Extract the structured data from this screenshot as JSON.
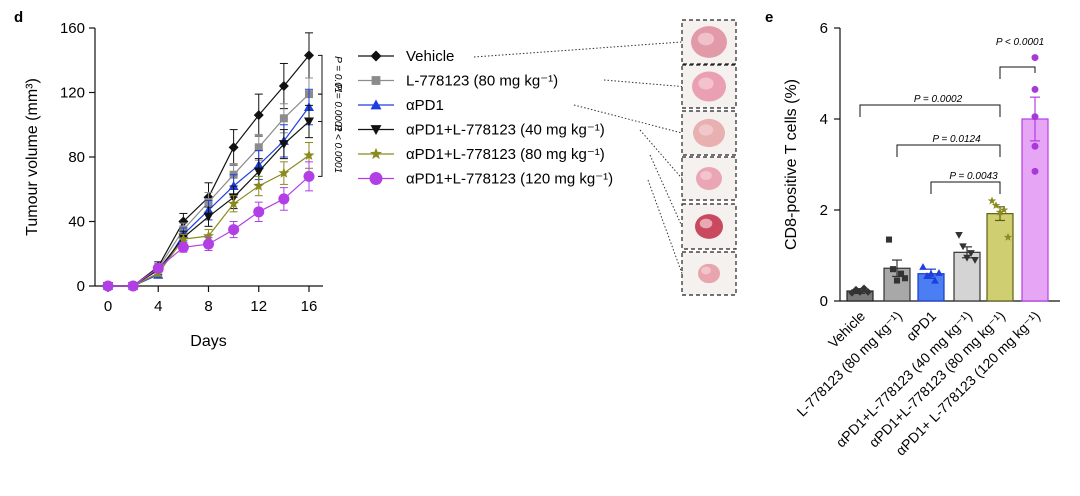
{
  "chart_data": [
    {
      "panel": "d",
      "type": "line",
      "xlabel": "Days",
      "ylabel": "Tumour volume (mm³)",
      "xlim": [
        0,
        17
      ],
      "ylim": [
        0,
        160
      ],
      "xticks": [
        "0",
        "4",
        "8",
        "12",
        "16"
      ],
      "yticks": [
        "0",
        "40",
        "80",
        "120",
        "160"
      ],
      "x": [
        0,
        2,
        4,
        6,
        8,
        10,
        12,
        14,
        16
      ],
      "series": [
        {
          "name": "Vehicle",
          "color": "#111111",
          "marker": "diamond",
          "values": [
            0,
            0,
            12,
            40,
            55,
            86,
            106,
            124,
            143
          ],
          "errors": [
            0,
            0,
            3,
            5,
            9,
            11,
            13,
            14,
            14
          ]
        },
        {
          "name": "L-778123 (80 mg kg⁻¹)",
          "color": "#8c8c8c",
          "marker": "square",
          "values": [
            0,
            0,
            11,
            35,
            52,
            69,
            86,
            104,
            119
          ],
          "errors": [
            0,
            0,
            3,
            4,
            6,
            7,
            8,
            9,
            10
          ]
        },
        {
          "name": "αPD1",
          "color": "#1e3fe0",
          "marker": "triangle-up",
          "values": [
            0,
            0,
            7,
            32,
            47,
            62,
            75,
            90,
            111
          ],
          "errors": [
            0,
            0,
            2,
            4,
            6,
            7,
            9,
            10,
            11
          ]
        },
        {
          "name": "αPD1+L-778123 (40 mg kg⁻¹)",
          "color": "#111111",
          "marker": "triangle-down",
          "values": [
            0,
            0,
            10,
            30,
            43,
            55,
            71,
            88,
            102
          ],
          "errors": [
            0,
            0,
            3,
            4,
            6,
            7,
            8,
            9,
            10
          ]
        },
        {
          "name": "αPD1+L-778123 (80 mg kg⁻¹)",
          "color": "#8a8a1e",
          "marker": "star",
          "values": [
            0,
            0,
            8,
            29,
            31,
            51,
            62,
            70,
            81
          ],
          "errors": [
            0,
            0,
            2,
            3,
            4,
            5,
            6,
            7,
            8
          ]
        },
        {
          "name": "αPD1+L-778123 (120 mg kg⁻¹)",
          "color": "#b23ee6",
          "marker": "circle",
          "values": [
            0,
            0,
            11,
            24,
            26,
            35,
            46,
            54,
            68
          ],
          "errors": [
            0,
            0,
            2,
            3,
            4,
            5,
            6,
            7,
            9
          ]
        }
      ],
      "significance": [
        {
          "label": "P = 0.01"
        },
        {
          "label": "P = 0.0001"
        },
        {
          "label": "P < 0.0001"
        }
      ]
    },
    {
      "panel": "e",
      "type": "bar",
      "ylabel": "CD8-positive T cells (%)",
      "ylim": [
        0,
        6
      ],
      "yticks": [
        "0",
        "2",
        "4",
        "6"
      ],
      "categories": [
        "Vehicle",
        "L-778123 (80 mg kg⁻¹)",
        "αPD1",
        "αPD1+L-778123 (40 mg kg⁻¹)",
        "αPD1+L-778123 (80 mg kg⁻¹)",
        "αPD1+ L-778123 (120 mg kg⁻¹)"
      ],
      "values": [
        0.22,
        0.72,
        0.6,
        1.07,
        1.92,
        4.0
      ],
      "errors": [
        0.05,
        0.18,
        0.1,
        0.12,
        0.15,
        0.48
      ],
      "colors": [
        "#7a7a7a",
        "#a8a8a8",
        "#4a7ef2",
        "#d4d4d4",
        "#cfcf72",
        "#e6a6f5"
      ],
      "edge_colors": [
        "#222222",
        "#333333",
        "#1a3cc4",
        "#333333",
        "#5e5e12",
        "#b23ee6"
      ],
      "points": [
        [
          0.18,
          0.25,
          0.2,
          0.28,
          0.2
        ],
        [
          1.35,
          0.7,
          0.45,
          0.6,
          0.5
        ],
        [
          0.75,
          0.55,
          0.6,
          0.45,
          0.62
        ],
        [
          1.45,
          1.2,
          0.95,
          1.05,
          0.9
        ],
        [
          2.2,
          2.1,
          1.95,
          2.0,
          1.4
        ],
        [
          5.35,
          4.65,
          4.05,
          3.4,
          2.85
        ]
      ],
      "comparisons": [
        {
          "label": "P = 0.0002"
        },
        {
          "label": "P = 0.0124"
        },
        {
          "label": "P = 0.0043"
        },
        {
          "label": "P < 0.0001"
        }
      ]
    }
  ]
}
